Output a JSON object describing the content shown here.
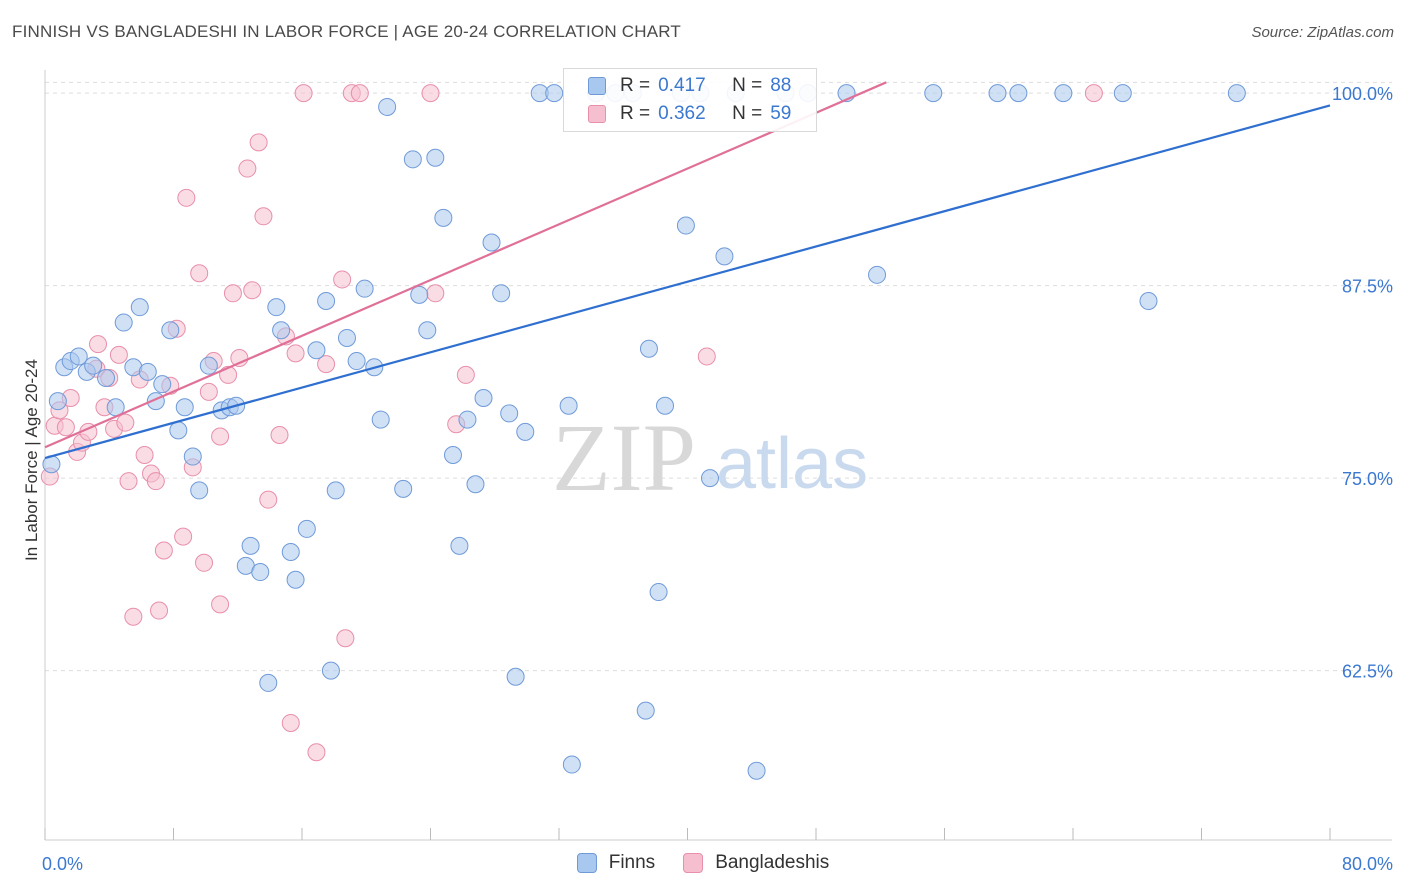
{
  "title": "FINNISH VS BANGLADESHI IN LABOR FORCE | AGE 20-24 CORRELATION CHART",
  "source": "Source: ZipAtlas.com",
  "watermark": {
    "zip": "ZIP",
    "atlas": "atlas"
  },
  "legend_top": {
    "r_label": "R =",
    "n_label": "N =",
    "rows": [
      {
        "r": "0.417",
        "n": "88"
      },
      {
        "r": "0.362",
        "n": "59"
      }
    ]
  },
  "colors": {
    "finns_fill": "#a9c8ef",
    "finns_stroke": "#6f9ad8",
    "finns_line": "#2f6fcf",
    "bangla_fill": "#f6bfd0",
    "bangla_stroke": "#e88fab",
    "bangla_line": "#e07098",
    "tick_label": "#3b78d0",
    "grid": "#dddddd"
  },
  "chart_data": {
    "type": "scatter",
    "title": "FINNISH VS BANGLADESHI IN LABOR FORCE | AGE 20-24 CORRELATION CHART",
    "xlabel": "",
    "ylabel": "In Labor Force | Age 20-24",
    "xlim": [
      0,
      80
    ],
    "ylim": [
      51.5,
      101.5
    ],
    "x_tick_labels": [
      "0.0%",
      "80.0%"
    ],
    "y_ticks": [
      62.5,
      75.0,
      87.5,
      100.0
    ],
    "y_tick_labels": [
      "62.5%",
      "75.0%",
      "87.5%",
      "100.0%"
    ],
    "grid": "horizontal dashed",
    "legend": [
      "Finns",
      "Bangladeshis"
    ],
    "legend_placement": "top-center and bottom",
    "series": [
      {
        "name": "Finns",
        "r": 0.417,
        "n": 88,
        "trend": [
          [
            0,
            76.3
          ],
          [
            80,
            99.2
          ]
        ],
        "points": [
          [
            0.4,
            75.9
          ],
          [
            0.8,
            80.0
          ],
          [
            1.2,
            82.2
          ],
          [
            1.6,
            82.6
          ],
          [
            2.1,
            82.9
          ],
          [
            2.6,
            81.9
          ],
          [
            3.0,
            82.3
          ],
          [
            3.8,
            81.5
          ],
          [
            4.4,
            79.6
          ],
          [
            4.9,
            85.1
          ],
          [
            5.5,
            82.2
          ],
          [
            5.9,
            86.1
          ],
          [
            6.4,
            81.9
          ],
          [
            6.9,
            80.0
          ],
          [
            7.3,
            81.1
          ],
          [
            7.8,
            84.6
          ],
          [
            8.3,
            78.1
          ],
          [
            8.7,
            79.6
          ],
          [
            9.2,
            76.4
          ],
          [
            9.6,
            74.2
          ],
          [
            10.2,
            82.3
          ],
          [
            11.0,
            79.4
          ],
          [
            11.5,
            79.6
          ],
          [
            11.9,
            79.7
          ],
          [
            12.5,
            69.3
          ],
          [
            12.8,
            70.6
          ],
          [
            13.4,
            68.9
          ],
          [
            13.9,
            61.7
          ],
          [
            14.4,
            86.1
          ],
          [
            14.7,
            84.6
          ],
          [
            15.3,
            70.2
          ],
          [
            15.6,
            68.4
          ],
          [
            16.3,
            71.7
          ],
          [
            16.9,
            83.3
          ],
          [
            17.5,
            86.5
          ],
          [
            17.8,
            62.5
          ],
          [
            18.1,
            74.2
          ],
          [
            18.8,
            84.1
          ],
          [
            19.4,
            82.6
          ],
          [
            19.9,
            87.3
          ],
          [
            20.5,
            82.2
          ],
          [
            20.9,
            78.8
          ],
          [
            21.3,
            99.1
          ],
          [
            22.3,
            74.3
          ],
          [
            22.9,
            95.7
          ],
          [
            23.3,
            86.9
          ],
          [
            23.8,
            84.6
          ],
          [
            24.3,
            95.8
          ],
          [
            24.8,
            91.9
          ],
          [
            25.4,
            76.5
          ],
          [
            25.8,
            70.6
          ],
          [
            26.3,
            78.8
          ],
          [
            26.8,
            74.6
          ],
          [
            27.3,
            80.2
          ],
          [
            27.8,
            90.3
          ],
          [
            28.4,
            87.0
          ],
          [
            28.9,
            79.2
          ],
          [
            29.3,
            62.1
          ],
          [
            29.9,
            78.0
          ],
          [
            30.8,
            100.0
          ],
          [
            31.7,
            100.0
          ],
          [
            32.6,
            79.7
          ],
          [
            32.8,
            56.4
          ],
          [
            34.3,
            100.0
          ],
          [
            35.5,
            100.0
          ],
          [
            36.6,
            100.0
          ],
          [
            37.4,
            59.9
          ],
          [
            37.6,
            83.4
          ],
          [
            38.2,
            67.6
          ],
          [
            38.6,
            79.7
          ],
          [
            39.6,
            100.0
          ],
          [
            39.9,
            91.4
          ],
          [
            41.4,
            75.0
          ],
          [
            42.3,
            89.4
          ],
          [
            43.0,
            100.0
          ],
          [
            44.3,
            56.0
          ],
          [
            46.1,
            100.0
          ],
          [
            47.5,
            100.0
          ],
          [
            49.9,
            100.0
          ],
          [
            51.8,
            88.2
          ],
          [
            55.3,
            100.0
          ],
          [
            59.3,
            100.0
          ],
          [
            60.6,
            100.0
          ],
          [
            63.4,
            100.0
          ],
          [
            67.1,
            100.0
          ],
          [
            68.7,
            86.5
          ],
          [
            74.2,
            100.0
          ],
          [
            40.8,
            100.0
          ]
        ]
      },
      {
        "name": "Bangladeshis",
        "r": 0.362,
        "n": 59,
        "trend": [
          [
            0,
            77.0
          ],
          [
            80,
            113.2
          ]
        ],
        "points": [
          [
            0.3,
            75.1
          ],
          [
            0.6,
            78.4
          ],
          [
            0.9,
            79.4
          ],
          [
            1.3,
            78.3
          ],
          [
            1.6,
            80.2
          ],
          [
            2.0,
            76.7
          ],
          [
            2.3,
            77.3
          ],
          [
            2.7,
            78.0
          ],
          [
            3.2,
            82.1
          ],
          [
            3.3,
            83.7
          ],
          [
            3.7,
            79.6
          ],
          [
            4.0,
            81.5
          ],
          [
            4.3,
            78.2
          ],
          [
            4.6,
            83.0
          ],
          [
            5.0,
            78.6
          ],
          [
            5.2,
            74.8
          ],
          [
            5.5,
            66.0
          ],
          [
            5.9,
            81.4
          ],
          [
            6.2,
            76.5
          ],
          [
            6.6,
            75.3
          ],
          [
            6.9,
            74.8
          ],
          [
            7.1,
            66.4
          ],
          [
            7.4,
            70.3
          ],
          [
            7.8,
            81.0
          ],
          [
            8.2,
            84.7
          ],
          [
            8.6,
            71.2
          ],
          [
            8.8,
            93.2
          ],
          [
            9.2,
            75.7
          ],
          [
            9.6,
            88.3
          ],
          [
            9.9,
            69.5
          ],
          [
            10.2,
            80.6
          ],
          [
            10.5,
            82.6
          ],
          [
            10.9,
            66.8
          ],
          [
            10.9,
            77.7
          ],
          [
            11.4,
            81.7
          ],
          [
            11.7,
            87.0
          ],
          [
            12.1,
            82.8
          ],
          [
            12.6,
            95.1
          ],
          [
            12.9,
            87.2
          ],
          [
            13.3,
            96.8
          ],
          [
            13.6,
            92.0
          ],
          [
            13.9,
            73.6
          ],
          [
            14.6,
            77.8
          ],
          [
            15.0,
            84.2
          ],
          [
            15.3,
            59.1
          ],
          [
            15.6,
            83.1
          ],
          [
            16.1,
            100.0
          ],
          [
            16.9,
            57.2
          ],
          [
            17.5,
            82.4
          ],
          [
            18.5,
            87.9
          ],
          [
            18.7,
            64.6
          ],
          [
            19.1,
            100.0
          ],
          [
            19.6,
            100.0
          ],
          [
            24.0,
            100.0
          ],
          [
            24.3,
            87.0
          ],
          [
            25.6,
            78.5
          ],
          [
            26.2,
            81.7
          ],
          [
            41.2,
            82.9
          ],
          [
            65.3,
            100.0
          ]
        ]
      }
    ]
  },
  "bottom_legend": [
    {
      "label": "Finns"
    },
    {
      "label": "Bangladeshis"
    }
  ]
}
